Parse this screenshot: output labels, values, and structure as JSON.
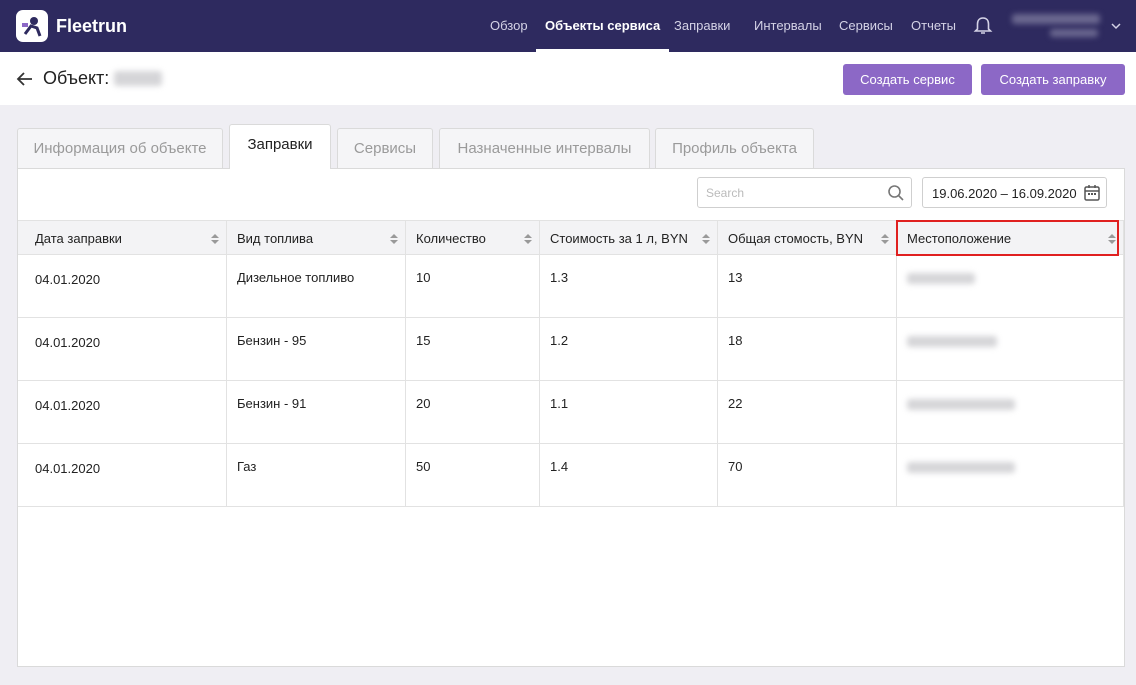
{
  "header": {
    "brand": "Fleetrun",
    "nav": [
      {
        "label": "Обзор",
        "active": false
      },
      {
        "label": "Объекты сервиса",
        "active": true
      },
      {
        "label": "Заправки",
        "active": false
      },
      {
        "label": "Интервалы",
        "active": false
      },
      {
        "label": "Сервисы",
        "active": false
      },
      {
        "label": "Отчеты",
        "active": false
      }
    ]
  },
  "page": {
    "title": "Объект:",
    "buttons": [
      "Создать сервис",
      "Создать заправку"
    ]
  },
  "tabs": [
    {
      "label": "Информация об объекте",
      "active": false
    },
    {
      "label": "Заправки",
      "active": true
    },
    {
      "label": "Сервисы",
      "active": false
    },
    {
      "label": "Назначенные интервалы",
      "active": false
    },
    {
      "label": "Профиль объекта",
      "active": false
    }
  ],
  "toolbar": {
    "search_placeholder": "Search",
    "date_range": "19.06.2020 – 16.09.2020"
  },
  "table": {
    "columns": [
      "Дата заправки",
      "Вид топлива",
      "Количество",
      "Стоимость за 1 л, BYN",
      "Общая стомость, BYN",
      "Местоположение"
    ],
    "rows": [
      [
        "04.01.2020",
        "Дизельное топливо",
        "10",
        "1.3",
        "13"
      ],
      [
        "04.01.2020",
        "Бензин - 95",
        "15",
        "1.2",
        "18"
      ],
      [
        "04.01.2020",
        "Бензин - 91",
        "20",
        "1.1",
        "22"
      ],
      [
        "04.01.2020",
        "Газ",
        "50",
        "1.4",
        "70"
      ]
    ]
  }
}
